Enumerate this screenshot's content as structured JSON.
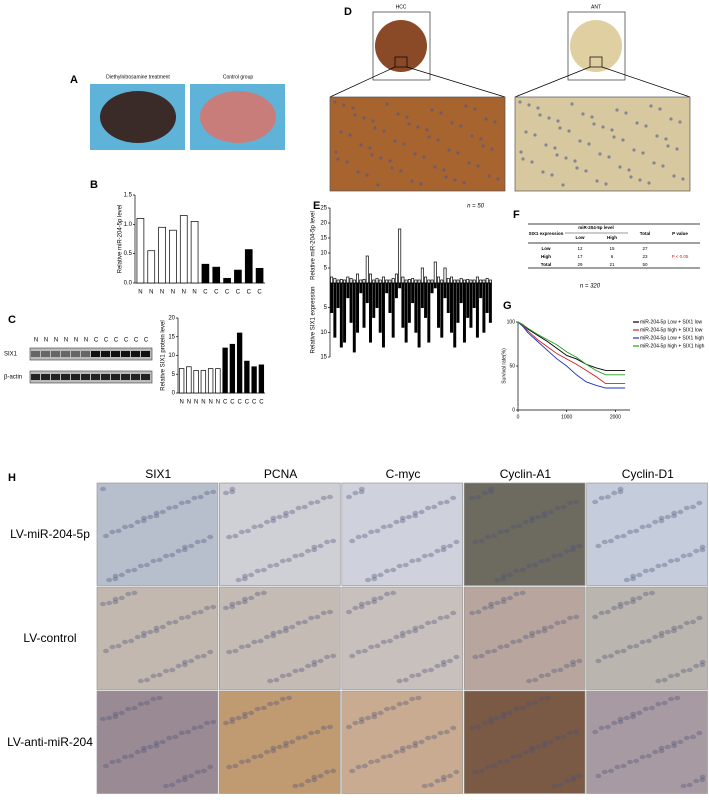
{
  "panel_a": {
    "label": "A",
    "captions": [
      "Diethylnitrosamine treatment",
      "Control group"
    ]
  },
  "panel_d": {
    "label": "D",
    "captions": [
      "HCC",
      "ANT"
    ]
  },
  "blot": {
    "label": "C",
    "lanes": [
      "N",
      "N",
      "N",
      "N",
      "N",
      "N",
      "C",
      "C",
      "C",
      "C",
      "C",
      "C"
    ],
    "rows": [
      "SIX1",
      "β-actin"
    ]
  },
  "table_f": {
    "label": "F",
    "header": [
      "SIX1 expression",
      "miR-204-5p level",
      "Total",
      "P value"
    ],
    "subheader": [
      "Low",
      "High"
    ],
    "rows": [
      [
        "Low",
        12,
        15,
        27
      ],
      [
        "High",
        17,
        6,
        23,
        "P < 0.05"
      ],
      [
        "Total",
        29,
        21,
        50
      ]
    ]
  },
  "panel_h": {
    "label": "H",
    "columns": [
      "SIX1",
      "PCNA",
      "C-myc",
      "Cyclin-A1",
      "Cyclin-D1"
    ],
    "rows": [
      "LV-miR-204-5p",
      "LV-control",
      "LV-anti-miR-204"
    ]
  },
  "chart_data": [
    {
      "type": "bar",
      "label": "B",
      "y_label": "Relative miR-204-5p level",
      "categories": [
        "N",
        "N",
        "N",
        "N",
        "N",
        "N",
        "C",
        "C",
        "C",
        "C",
        "C",
        "C"
      ],
      "values": [
        1.1,
        0.55,
        0.95,
        0.9,
        1.15,
        1.05,
        0.32,
        0.27,
        0.08,
        0.22,
        0.57,
        0.25
      ],
      "colors": [
        "#ffffff",
        "#ffffff",
        "#ffffff",
        "#ffffff",
        "#ffffff",
        "#ffffff",
        "#000000",
        "#000000",
        "#000000",
        "#000000",
        "#000000",
        "#000000"
      ],
      "ylim": [
        0,
        1.5
      ],
      "yticks": [
        {
          "value": 0,
          "label": "0.0"
        },
        {
          "value": 0.5,
          "label": "0.5"
        },
        {
          "value": 1,
          "label": "1.0"
        },
        {
          "value": 1.5,
          "label": "1.5"
        }
      ]
    },
    {
      "type": "bar",
      "y_label": "Relative SIX1 protein level",
      "categories": [
        "N",
        "N",
        "N",
        "N",
        "N",
        "N",
        "C",
        "C",
        "C",
        "C",
        "C",
        "C"
      ],
      "values": [
        6.5,
        7,
        6,
        6,
        6.5,
        6.5,
        12,
        13,
        16,
        8.5,
        7,
        7.5
      ],
      "colors": [
        "#ffffff",
        "#ffffff",
        "#ffffff",
        "#ffffff",
        "#ffffff",
        "#ffffff",
        "#000000",
        "#000000",
        "#000000",
        "#000000",
        "#000000",
        "#000000"
      ],
      "ylim": [
        0,
        20
      ],
      "yticks": [
        0,
        5,
        10,
        15,
        20
      ]
    },
    {
      "type": "mirror_bar",
      "label": "E",
      "annotation": "n = 50",
      "ylim": [
        0,
        25
      ],
      "yticks": [
        5,
        10,
        15,
        20,
        25
      ],
      "y2lim": [
        0,
        15
      ],
      "y2ticks": [
        5,
        10,
        15
      ],
      "series": [
        {
          "name": "Relative miR-204-5p level",
          "color": "#ffffff",
          "values": [
            2,
            1.5,
            1,
            1.2,
            1,
            2,
            1.5,
            1,
            3,
            1,
            1.2,
            9,
            3,
            1,
            1.5,
            1,
            2,
            1,
            1,
            1.5,
            3,
            18,
            2,
            1,
            1.2,
            1.5,
            1,
            1,
            5,
            2,
            1,
            1,
            7,
            2,
            1,
            5,
            1.5,
            2,
            1,
            1,
            1.5,
            1,
            1.2,
            1,
            1,
            2,
            1,
            1,
            1.5,
            1
          ]
        },
        {
          "name": "Relative SIX1 expression",
          "color": "#000000",
          "axis": "y2",
          "values": [
            6,
            11,
            5,
            13,
            12,
            3,
            8,
            14,
            10,
            2,
            9,
            4,
            12,
            7,
            5,
            10,
            13,
            2,
            6,
            11,
            3,
            1,
            9,
            12,
            8,
            4,
            10,
            13,
            5,
            7,
            12,
            2,
            1,
            9,
            11,
            3,
            6,
            10,
            13,
            8,
            4,
            12,
            7,
            9,
            5,
            11,
            3,
            10,
            6,
            8
          ]
        }
      ]
    },
    {
      "type": "survival",
      "label": "G",
      "annotation": "n = 320",
      "y_label": "Survival rate(%)",
      "xlim": [
        0,
        2300
      ],
      "xticks": [
        0,
        1000,
        2000
      ],
      "ylim": [
        0,
        100
      ],
      "yticks": [
        0,
        50,
        100
      ],
      "series": [
        {
          "name": "miR-204-5p Low + SIX1 low",
          "color": "#000000",
          "x": [
            0,
            100,
            200,
            400,
            600,
            800,
            1000,
            1200,
            1400,
            1600,
            1800,
            2000,
            2200
          ],
          "values": [
            100,
            97,
            92,
            85,
            78,
            70,
            62,
            58,
            52,
            48,
            45,
            45,
            45
          ]
        },
        {
          "name": "miR-204-5p high + SIX1 low",
          "color": "#d62020",
          "x": [
            0,
            100,
            200,
            400,
            600,
            800,
            1000,
            1200,
            1400,
            1600,
            1800,
            2000,
            2200
          ],
          "values": [
            100,
            96,
            90,
            80,
            72,
            64,
            58,
            52,
            45,
            38,
            30,
            30,
            30
          ]
        },
        {
          "name": "miR-204-5p Low + SIX1 high",
          "color": "#2030c0",
          "x": [
            0,
            100,
            200,
            400,
            600,
            800,
            1000,
            1200,
            1400,
            1600,
            1800,
            2000,
            2200
          ],
          "values": [
            100,
            95,
            88,
            78,
            68,
            58,
            50,
            40,
            32,
            28,
            25,
            25,
            25
          ]
        },
        {
          "name": "miR-204-5p high + SIX1 high",
          "color": "#20a020",
          "x": [
            0,
            100,
            200,
            400,
            600,
            800,
            1000,
            1200,
            1400,
            1600,
            1800,
            2000,
            2200
          ],
          "values": [
            100,
            97,
            93,
            86,
            80,
            74,
            66,
            60,
            52,
            45,
            40,
            40,
            40
          ]
        }
      ]
    }
  ]
}
